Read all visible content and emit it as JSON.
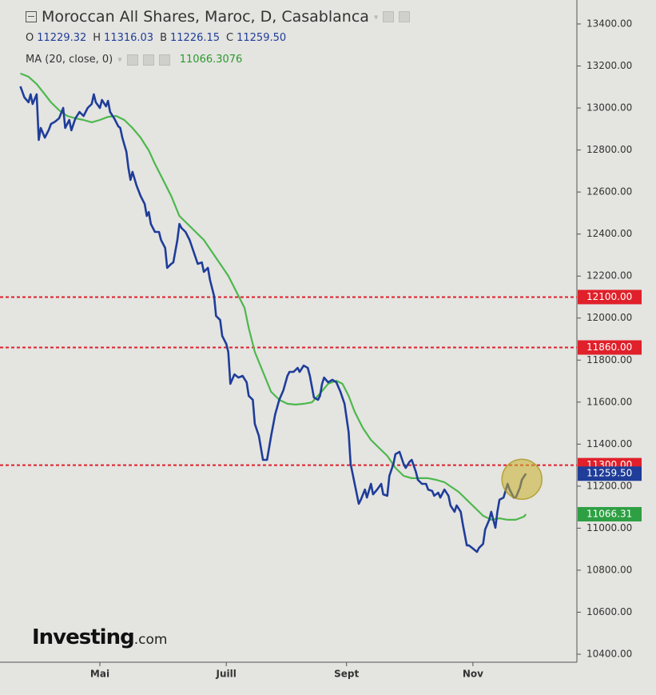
{
  "chart_data": {
    "type": "line",
    "title": "Moroccan All Shares, Maroc, D, Casablanca",
    "ohlc": [
      {
        "key": "O",
        "value": 11229.32,
        "label": "11229.32"
      },
      {
        "key": "H",
        "value": 11316.03,
        "label": "11316.03"
      },
      {
        "key": "B",
        "value": 11226.15,
        "label": "11226.15"
      },
      {
        "key": "C",
        "value": 11259.5,
        "label": "11259.50"
      }
    ],
    "ma_value": {
      "value": 11066.3076,
      "label": "11066.3076"
    },
    "xlim": [
      0,
      283
    ],
    "xticks": [
      {
        "value": 49,
        "label": "Mai"
      },
      {
        "value": 111,
        "label": "Juill"
      },
      {
        "value": 170,
        "label": "Sept"
      },
      {
        "value": 232,
        "label": "Nov"
      }
    ],
    "ylim": [
      10362,
      13514
    ],
    "yticks": [
      {
        "value": 10400,
        "label": "10400.00"
      },
      {
        "value": 10600,
        "label": "10600.00"
      },
      {
        "value": 10800,
        "label": "10800.00"
      },
      {
        "value": 11000,
        "label": "11000.00"
      },
      {
        "value": 11200,
        "label": "11200.00"
      },
      {
        "value": 11400,
        "label": "11400.00"
      },
      {
        "value": 11600,
        "label": "11600.00"
      },
      {
        "value": 11800,
        "label": "11800.00"
      },
      {
        "value": 12000,
        "label": "12000.00"
      },
      {
        "value": 12200,
        "label": "12200.00"
      },
      {
        "value": 12400,
        "label": "12400.00"
      },
      {
        "value": 12600,
        "label": "12600.00"
      },
      {
        "value": 12800,
        "label": "12800.00"
      },
      {
        "value": 13000,
        "label": "13000.00"
      },
      {
        "value": 13200,
        "label": "13200.00"
      },
      {
        "value": 13400,
        "label": "13400.00"
      }
    ],
    "levels": [
      {
        "value": 12100,
        "label": "12100.00",
        "color": "#e0202a"
      },
      {
        "value": 11860,
        "label": "11860.00",
        "color": "#e0202a"
      },
      {
        "value": 11300,
        "label": "11300.00",
        "color": "#e0202a"
      }
    ],
    "markers": [
      {
        "value": 11259.5,
        "label": "11259.50",
        "color": "#1f3d99"
      },
      {
        "value": 11066.31,
        "label": "11066.31",
        "color": "#2ea043"
      }
    ],
    "series": [
      {
        "color": "#1f3d99",
        "x": [
          10,
          12,
          14,
          15,
          16,
          18,
          19,
          20,
          22,
          24,
          25,
          27,
          29,
          31,
          32,
          34,
          35,
          37,
          39,
          41,
          43,
          45,
          46,
          47,
          49,
          50,
          52,
          53,
          54,
          56,
          58,
          59,
          60,
          62,
          63,
          64,
          65,
          67,
          69,
          71,
          72,
          73,
          74,
          76,
          78,
          79,
          81,
          82,
          84,
          85,
          87,
          88,
          89,
          91,
          93,
          95,
          97,
          99,
          100,
          102,
          103,
          105,
          106,
          108,
          109,
          111,
          112,
          113,
          115,
          117,
          119,
          121,
          122,
          124,
          125,
          127,
          129,
          131,
          133,
          135,
          137,
          139,
          141,
          142,
          144,
          146,
          147,
          149,
          151,
          152,
          154,
          156,
          157,
          158,
          159,
          161,
          163,
          165,
          167,
          169,
          171,
          172,
          174,
          176,
          177,
          179,
          180,
          182,
          183,
          185,
          187,
          188,
          190,
          191,
          193,
          194,
          196,
          198,
          199,
          201,
          202,
          204,
          205,
          207,
          209,
          210,
          212,
          213,
          215,
          216,
          218,
          220,
          221,
          223,
          224,
          226,
          227,
          229,
          230,
          232,
          234,
          235,
          237,
          238,
          240,
          241,
          243,
          244,
          245,
          247,
          249,
          250,
          252,
          253,
          255,
          256,
          258
        ],
        "values": [
          13103,
          13050,
          13027,
          13065,
          13019,
          13065,
          12848,
          12905,
          12859,
          12897,
          12924,
          12935,
          12951,
          13000,
          12905,
          12943,
          12894,
          12951,
          12981,
          12962,
          13000,
          13019,
          13065,
          13027,
          13000,
          13038,
          13008,
          13034,
          12981,
          12951,
          12913,
          12905,
          12859,
          12791,
          12715,
          12658,
          12696,
          12631,
          12581,
          12543,
          12486,
          12505,
          12448,
          12410,
          12410,
          12372,
          12334,
          12239,
          12258,
          12265,
          12372,
          12448,
          12429,
          12410,
          12372,
          12315,
          12258,
          12265,
          12220,
          12239,
          12182,
          12106,
          12010,
          11991,
          11915,
          11877,
          11839,
          11687,
          11732,
          11717,
          11725,
          11694,
          11630,
          11611,
          11496,
          11439,
          11325,
          11325,
          11439,
          11542,
          11611,
          11656,
          11725,
          11744,
          11744,
          11763,
          11744,
          11774,
          11763,
          11725,
          11622,
          11611,
          11630,
          11687,
          11717,
          11694,
          11706,
          11694,
          11649,
          11592,
          11458,
          11306,
          11211,
          11116,
          11135,
          11184,
          11146,
          11211,
          11161,
          11184,
          11211,
          11161,
          11154,
          11249,
          11306,
          11352,
          11363,
          11306,
          11287,
          11317,
          11325,
          11268,
          11230,
          11211,
          11211,
          11184,
          11177,
          11154,
          11169,
          11146,
          11184,
          11154,
          11108,
          11078,
          11108,
          11078,
          11021,
          10918,
          10918,
          10903,
          10887,
          10906,
          10925,
          10994,
          11040,
          11078,
          11002,
          11078,
          11135,
          11146,
          11211,
          11184,
          11146,
          11146,
          11192,
          11230,
          11259.5
        ]
      },
      {
        "name": "MA (20, close, 0)",
        "color": "#4cb84c",
        "x": [
          10,
          14,
          18,
          22,
          25,
          29,
          33,
          37,
          41,
          45,
          49,
          53,
          57,
          61,
          65,
          69,
          73,
          76,
          80,
          84,
          88,
          92,
          96,
          100,
          104,
          108,
          112,
          116,
          120,
          122,
          125,
          129,
          133,
          137,
          141,
          145,
          149,
          153,
          157,
          161,
          165,
          168,
          171,
          174,
          178,
          182,
          186,
          190,
          194,
          198,
          202,
          206,
          210,
          214,
          218,
          221,
          225,
          229,
          233,
          237,
          241,
          245,
          249,
          253,
          257,
          258
        ],
        "values": [
          13164,
          13149,
          13114,
          13065,
          13027,
          12989,
          12962,
          12951,
          12943,
          12932,
          12943,
          12958,
          12962,
          12943,
          12905,
          12859,
          12798,
          12734,
          12658,
          12581,
          12486,
          12448,
          12410,
          12372,
          12315,
          12258,
          12201,
          12125,
          12048,
          11953,
          11839,
          11744,
          11649,
          11611,
          11592,
          11588,
          11592,
          11599,
          11641,
          11687,
          11702,
          11687,
          11630,
          11554,
          11477,
          11420,
          11382,
          11344,
          11287,
          11249,
          11238,
          11238,
          11238,
          11230,
          11219,
          11199,
          11173,
          11135,
          11097,
          11059,
          11040,
          11047,
          11040,
          11040,
          11055,
          11066.31
        ]
      }
    ],
    "logo": "Investing",
    "logo_suffix": ".com"
  }
}
